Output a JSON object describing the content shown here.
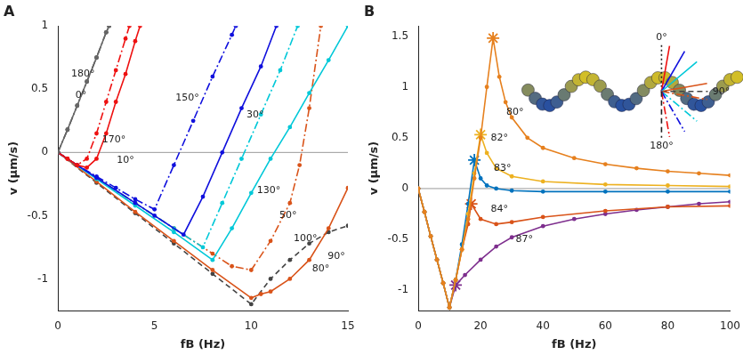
{
  "chart_data": [
    {
      "type": "line",
      "title": "A",
      "x_label": "fB (Hz)",
      "y_label": "v (μm/s)",
      "xlim": [
        0,
        15
      ],
      "xticks": [
        0,
        5,
        10,
        15
      ],
      "ylim": [
        -1.25,
        1
      ],
      "yticks": [
        -1,
        -0.5,
        0,
        0.5,
        1
      ],
      "grid": false,
      "series": [
        {
          "name": "0°",
          "color": "#666666",
          "line_style": "solid",
          "marker": "circle",
          "x": [
            0,
            0.5,
            1,
            1.5,
            2,
            2.5,
            2.65
          ],
          "values": [
            0,
            0.18,
            0.37,
            0.56,
            0.75,
            0.95,
            1.0
          ]
        },
        {
          "name": "180°",
          "color": "#444444",
          "line_style": "dashdot",
          "marker": "circle",
          "x": [
            0,
            0.5,
            1,
            1.5,
            2,
            2.5,
            2.65
          ],
          "values": [
            0,
            0.18,
            0.37,
            0.56,
            0.75,
            0.95,
            1.0
          ]
        },
        {
          "name": "170°",
          "color": "#ee1111",
          "line_style": "dashdot",
          "marker": "circle",
          "x": [
            0,
            0.5,
            1,
            1.5,
            2,
            2.5,
            3,
            3.5,
            3.7
          ],
          "values": [
            0,
            -0.05,
            -0.1,
            -0.05,
            0.15,
            0.4,
            0.65,
            0.9,
            1.0
          ]
        },
        {
          "name": "10°",
          "color": "#ee1111",
          "line_style": "solid",
          "marker": "circle",
          "x": [
            0,
            0.5,
            1,
            1.5,
            2,
            2.5,
            3,
            3.5,
            4,
            4.25
          ],
          "values": [
            0,
            -0.05,
            -0.1,
            -0.12,
            -0.05,
            0.15,
            0.4,
            0.62,
            0.88,
            1.0
          ]
        },
        {
          "name": "150°",
          "color": "#1010dd",
          "line_style": "dashdot",
          "marker": "circle",
          "x": [
            0,
            1,
            2,
            3,
            4,
            5,
            6,
            7,
            8,
            9,
            9.2
          ],
          "values": [
            0,
            -0.1,
            -0.19,
            -0.28,
            -0.37,
            -0.45,
            -0.1,
            0.25,
            0.6,
            0.93,
            1.0
          ]
        },
        {
          "name": "30°",
          "color": "#1010dd",
          "line_style": "solid",
          "marker": "circle",
          "x": [
            0,
            2,
            4,
            5,
            6.5,
            7.5,
            8.5,
            9.5,
            10.5,
            11.3
          ],
          "values": [
            0,
            -0.2,
            -0.4,
            -0.5,
            -0.65,
            -0.35,
            0,
            0.35,
            0.68,
            1.0
          ]
        },
        {
          "name": "130°",
          "color": "#00c8d8",
          "line_style": "dashdot",
          "marker": "circle",
          "x": [
            0,
            2,
            4,
            6,
            7.5,
            8.5,
            9.5,
            10.5,
            11.5,
            12.4
          ],
          "values": [
            0,
            -0.2,
            -0.4,
            -0.6,
            -0.75,
            -0.4,
            -0.05,
            0.3,
            0.65,
            1.0
          ]
        },
        {
          "name": "50°",
          "color": "#00c8d8",
          "line_style": "solid",
          "marker": "circle",
          "x": [
            0,
            2,
            4,
            6,
            8,
            9,
            10,
            11,
            12,
            13,
            14,
            15
          ],
          "values": [
            0,
            -0.21,
            -0.42,
            -0.63,
            -0.85,
            -0.6,
            -0.32,
            -0.05,
            0.2,
            0.47,
            0.73,
            1.0
          ]
        },
        {
          "name": "100°",
          "color": "#d95319",
          "line_style": "dashdot",
          "marker": "circle",
          "x": [
            0,
            2,
            4,
            6,
            8,
            9,
            10,
            11,
            12,
            12.5,
            13,
            13.6
          ],
          "values": [
            0,
            -0.2,
            -0.4,
            -0.6,
            -0.8,
            -0.9,
            -0.93,
            -0.7,
            -0.4,
            -0.1,
            0.35,
            1.0
          ]
        },
        {
          "name": "80°",
          "color": "#d95319",
          "line_style": "solid",
          "marker": "circle",
          "x": [
            0,
            2,
            4,
            6,
            8,
            10,
            10.5,
            11,
            12,
            13,
            14,
            15
          ],
          "values": [
            0,
            -0.23,
            -0.47,
            -0.7,
            -0.93,
            -1.15,
            -1.12,
            -1.1,
            -1.0,
            -0.85,
            -0.6,
            -0.28
          ]
        },
        {
          "name": "90°",
          "color": "#444444",
          "line_style": "dashed",
          "marker": "circle",
          "x": [
            0,
            2,
            4,
            6,
            8,
            10,
            11,
            12,
            13,
            14,
            15
          ],
          "values": [
            0,
            -0.24,
            -0.48,
            -0.72,
            -0.96,
            -1.2,
            -1.0,
            -0.85,
            -0.72,
            -0.63,
            -0.58
          ]
        }
      ],
      "annotations": [
        {
          "text": "180°",
          "x": 1.3,
          "y": 0.62
        },
        {
          "text": "0°",
          "x": 1.2,
          "y": 0.45
        },
        {
          "text": "170°",
          "x": 2.9,
          "y": 0.1
        },
        {
          "text": "10°",
          "x": 3.5,
          "y": -0.06
        },
        {
          "text": "150°",
          "x": 6.7,
          "y": 0.43
        },
        {
          "text": "30°",
          "x": 10.2,
          "y": 0.3
        },
        {
          "text": "130°",
          "x": 10.9,
          "y": -0.3
        },
        {
          "text": "50°",
          "x": 11.9,
          "y": -0.5
        },
        {
          "text": "100°",
          "x": 12.8,
          "y": -0.68
        },
        {
          "text": "80°",
          "x": 13.6,
          "y": -0.92
        },
        {
          "text": "90°",
          "x": 14.4,
          "y": -0.82
        }
      ]
    },
    {
      "type": "line",
      "title": "B",
      "x_label": "fB (Hz)",
      "y_label": "v (μm/s)",
      "xlim": [
        0,
        100
      ],
      "xticks": [
        0,
        20,
        40,
        60,
        80,
        100
      ],
      "ylim": [
        -1.2,
        1.6
      ],
      "yticks": [
        -1,
        -0.5,
        0,
        0.5,
        1,
        1.5
      ],
      "grid": false,
      "series": [
        {
          "name": "80°",
          "color": "#e6801e",
          "line_style": "solid",
          "marker": "circle",
          "x": [
            0,
            2,
            4,
            6,
            8,
            10,
            12,
            14,
            16,
            18,
            20,
            22,
            24,
            26,
            28,
            30,
            35,
            40,
            50,
            60,
            70,
            80,
            90,
            100
          ],
          "values": [
            0,
            -0.23,
            -0.47,
            -0.7,
            -0.93,
            -1.17,
            -0.9,
            -0.6,
            -0.3,
            0.1,
            0.5,
            1.0,
            1.48,
            1.1,
            0.85,
            0.7,
            0.5,
            0.4,
            0.3,
            0.24,
            0.2,
            0.17,
            0.15,
            0.13
          ],
          "peak": {
            "x": 24,
            "y": 1.48
          }
        },
        {
          "name": "82°",
          "color": "#edb120",
          "line_style": "solid",
          "marker": "circle",
          "x": [
            0,
            2,
            4,
            6,
            8,
            10,
            12,
            14,
            16,
            18,
            20,
            22,
            25,
            30,
            40,
            60,
            80,
            100
          ],
          "values": [
            0,
            -0.23,
            -0.47,
            -0.7,
            -0.93,
            -1.17,
            -0.9,
            -0.6,
            -0.25,
            0.15,
            0.53,
            0.35,
            0.2,
            0.12,
            0.07,
            0.04,
            0.03,
            0.02
          ],
          "peak": {
            "x": 20,
            "y": 0.53
          }
        },
        {
          "name": "83°",
          "color": "#0072bd",
          "line_style": "solid",
          "marker": "circle",
          "x": [
            0,
            2,
            4,
            6,
            8,
            10,
            12,
            14,
            16,
            18,
            20,
            22,
            25,
            30,
            40,
            60,
            80,
            100
          ],
          "values": [
            0,
            -0.23,
            -0.47,
            -0.7,
            -0.93,
            -1.17,
            -0.9,
            -0.55,
            -0.15,
            0.28,
            0.1,
            0.03,
            0,
            -0.02,
            -0.03,
            -0.03,
            -0.03,
            -0.03
          ],
          "peak": {
            "x": 18,
            "y": 0.28
          }
        },
        {
          "name": "84°",
          "color": "#d95319",
          "line_style": "solid",
          "marker": "circle",
          "x": [
            0,
            2,
            4,
            6,
            8,
            10,
            12,
            14,
            16,
            17,
            20,
            25,
            30,
            40,
            60,
            80,
            100
          ],
          "values": [
            0,
            -0.23,
            -0.47,
            -0.7,
            -0.93,
            -1.17,
            -0.9,
            -0.6,
            -0.35,
            -0.15,
            -0.3,
            -0.35,
            -0.33,
            -0.28,
            -0.22,
            -0.18,
            -0.17
          ],
          "peak": {
            "x": 17,
            "y": -0.15
          }
        },
        {
          "name": "87°",
          "color": "#7e2f8e",
          "line_style": "solid",
          "marker": "circle",
          "x": [
            0,
            2,
            4,
            6,
            8,
            10,
            12,
            15,
            20,
            25,
            30,
            40,
            50,
            60,
            70,
            80,
            90,
            100
          ],
          "values": [
            0,
            -0.23,
            -0.47,
            -0.7,
            -0.93,
            -1.17,
            -0.95,
            -0.85,
            -0.7,
            -0.57,
            -0.48,
            -0.37,
            -0.3,
            -0.25,
            -0.21,
            -0.18,
            -0.15,
            -0.13
          ],
          "peak": {
            "x": 12,
            "y": -0.95
          }
        }
      ],
      "annotations": [
        {
          "text": "80°",
          "x": 31,
          "y": 0.75
        },
        {
          "text": "82°",
          "x": 26,
          "y": 0.5
        },
        {
          "text": "83°",
          "x": 27,
          "y": 0.2
        },
        {
          "text": "84°",
          "x": 26,
          "y": -0.2
        },
        {
          "text": "87°",
          "x": 34,
          "y": -0.5
        }
      ],
      "inset": {
        "lines": [
          {
            "angle": 0,
            "color": "#222222",
            "line_style": "dotted"
          },
          {
            "angle": 10,
            "color": "#ee1111",
            "line_style": "solid"
          },
          {
            "angle": 30,
            "color": "#1010dd",
            "line_style": "solid"
          },
          {
            "angle": 50,
            "color": "#00c8d8",
            "line_style": "solid"
          },
          {
            "angle": 80,
            "color": "#d95319",
            "line_style": "solid"
          },
          {
            "angle": 90,
            "color": "#444444",
            "line_style": "dashed"
          },
          {
            "angle": 100,
            "color": "#d95319",
            "line_style": "dashdot"
          },
          {
            "angle": 130,
            "color": "#00c8d8",
            "line_style": "dashdot"
          },
          {
            "angle": 150,
            "color": "#1010dd",
            "line_style": "dashdot"
          },
          {
            "angle": 170,
            "color": "#ee1111",
            "line_style": "dashdot"
          },
          {
            "angle": 180,
            "color": "#222222",
            "line_style": "dashed"
          }
        ],
        "labels": [
          {
            "text": "0°",
            "angle": 0
          },
          {
            "text": "90°",
            "angle": 90
          },
          {
            "text": "180°",
            "angle": 180
          }
        ]
      }
    }
  ]
}
